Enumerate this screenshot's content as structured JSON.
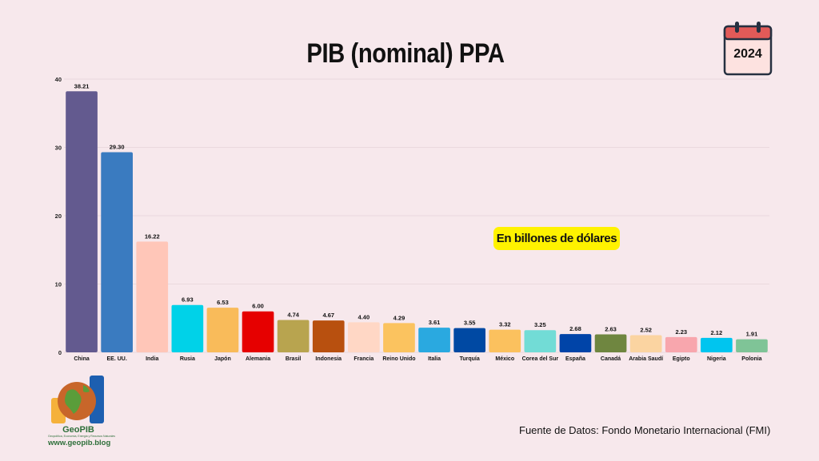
{
  "chart_data": {
    "type": "bar",
    "title": "PIB (nominal) PPA",
    "categories": [
      "China",
      "EE. UU.",
      "India",
      "Rusia",
      "Japón",
      "Alemania",
      "Brasil",
      "Indonesia",
      "Francia",
      "Reino Unido",
      "Italia",
      "Turquía",
      "México",
      "Corea del Sur",
      "España",
      "Canadá",
      "Arabia Saudí",
      "Egipto",
      "Nigeria",
      "Polonia"
    ],
    "values": [
      38.21,
      29.3,
      16.22,
      6.93,
      6.53,
      6.0,
      4.74,
      4.67,
      4.4,
      4.29,
      3.61,
      3.55,
      3.32,
      3.25,
      2.68,
      2.63,
      2.52,
      2.23,
      2.12,
      1.91
    ],
    "value_labels": [
      "38.21",
      "29.30",
      "16.22",
      "6.93",
      "6.53",
      "6.00",
      "4.74",
      "4.67",
      "4.40",
      "4.29",
      "3.61",
      "3.55",
      "3.32",
      "3.25",
      "2.68",
      "2.63",
      "2.52",
      "2.23",
      "2.12",
      "1.91"
    ],
    "colors": [
      "#635a8f",
      "#3a7bc0",
      "#ffc6b8",
      "#00d2e8",
      "#f9bb5a",
      "#e60000",
      "#b8a44f",
      "#b8500f",
      "#ffd7c5",
      "#fbc35f",
      "#2aa9e0",
      "#0049a3",
      "#fbc15e",
      "#72dcd6",
      "#0044a8",
      "#6f8640",
      "#fbd4a1",
      "#f8a6ad",
      "#00c5ef",
      "#7fc497"
    ],
    "ylim": [
      0,
      40
    ],
    "yticks": [
      0,
      10,
      20,
      30,
      40
    ],
    "grid": true,
    "annotation": "En billones de dólares"
  },
  "calendar": {
    "year": "2024"
  },
  "source": "Fuente de Datos: Fondo Monetario Internacional (FMI)",
  "logo": {
    "name": "GeoPIB",
    "tagline": "Geopolítica, Economía, Energía y Recursos Naturales",
    "url": "www.geopib.blog"
  }
}
